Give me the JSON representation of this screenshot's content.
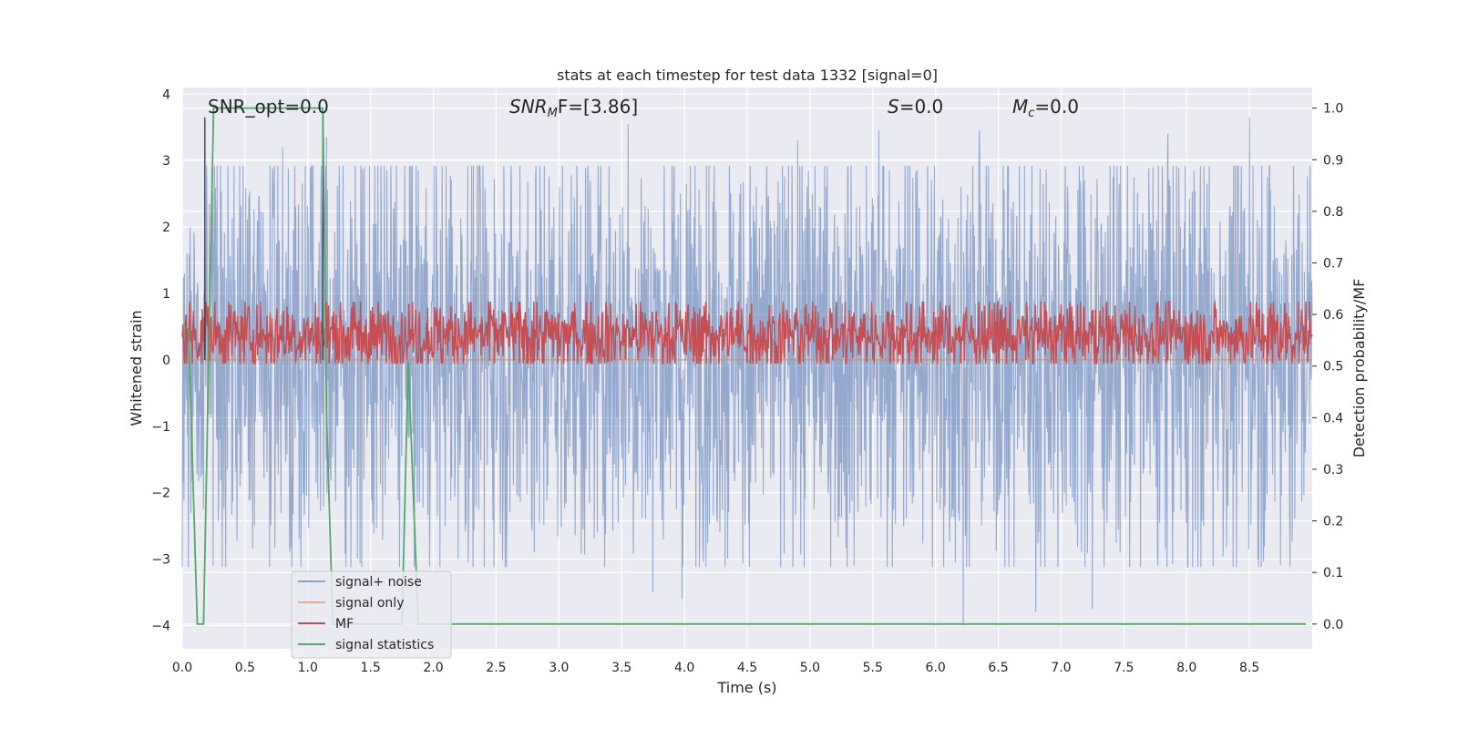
{
  "chart_data": {
    "type": "line",
    "title": "stats at each timestep for test data 1332 [signal=0]",
    "xlabel": "Time (s)",
    "ylabel": "Whitened strain",
    "y2label": "Detection probability/MF",
    "xlim": [
      0.0,
      9.0
    ],
    "ylim": [
      -4.35,
      4.1
    ],
    "y2lim": [
      -0.048,
      1.04
    ],
    "xticks": [
      0.0,
      0.5,
      1.0,
      1.5,
      2.0,
      2.5,
      3.0,
      3.5,
      4.0,
      4.5,
      5.0,
      5.5,
      6.0,
      6.5,
      7.0,
      7.5,
      8.0,
      8.5
    ],
    "xtick_labels": [
      "0.0",
      "0.5",
      "1.0",
      "1.5",
      "2.0",
      "2.5",
      "3.0",
      "3.5",
      "4.0",
      "4.5",
      "5.0",
      "5.5",
      "6.0",
      "6.5",
      "7.0",
      "7.5",
      "8.0",
      "8.5"
    ],
    "yticks": [
      4,
      3,
      2,
      1,
      0,
      -1,
      -2,
      -3,
      -4
    ],
    "ytick_labels": [
      "4",
      "3",
      "2",
      "1",
      "0",
      "−1",
      "−2",
      "−3",
      "−4"
    ],
    "y2ticks": [
      1.0,
      0.9,
      0.8,
      0.7,
      0.6,
      0.5,
      0.4,
      0.3,
      0.2,
      0.1,
      0.0
    ],
    "y2tick_labels": [
      "1.0",
      "0.9",
      "0.8",
      "0.7",
      "0.6",
      "0.5",
      "0.4",
      "0.3",
      "0.2",
      "0.1",
      "0.0"
    ],
    "grid": true,
    "legend_position": "lower-left",
    "annotations": {
      "snr_opt": "SNR_opt=0.0",
      "snr_mf_name": "SNR",
      "snr_mf_sub": "M",
      "snr_mf_rest": "F=[3.86]",
      "s_name": "S",
      "s_rest": "=0.0",
      "mc_name": "M",
      "mc_sub": "c",
      "mc_rest": "=0.0"
    },
    "series": [
      {
        "name": "signal+ noise",
        "color": "#4c72b0",
        "axis": "left",
        "description_range": [
          -4.0,
          3.65
        ],
        "noise_band": [
          -1.7,
          2.1
        ],
        "spike_peaks": [
          [
            0.18,
            3.65
          ],
          [
            0.8,
            3.2
          ],
          [
            1.15,
            3.35
          ],
          [
            3.55,
            3.55
          ],
          [
            4.9,
            3.3
          ],
          [
            5.55,
            3.45
          ],
          [
            6.35,
            3.45
          ],
          [
            7.85,
            3.4
          ],
          [
            8.5,
            3.65
          ],
          [
            3.75,
            -3.5
          ],
          [
            3.98,
            -3.6
          ],
          [
            6.22,
            -4.0
          ],
          [
            6.8,
            -3.8
          ],
          [
            7.25,
            -3.75
          ]
        ]
      },
      {
        "name": "signal only",
        "color": "#dd8452",
        "axis": "left",
        "x": [
          0.0,
          9.0
        ],
        "y": [
          0.0,
          0.0
        ]
      },
      {
        "name": "MF",
        "color": "#c44e52",
        "axis": "right",
        "band": [
          0.52,
          0.6
        ],
        "peaks": [
          0.63,
          0.62,
          0.62
        ]
      },
      {
        "name": "signal statistics",
        "color": "#55a868",
        "axis": "right",
        "x": [
          0.0,
          0.05,
          0.12,
          0.17,
          0.25,
          1.12,
          1.15,
          1.2,
          1.75,
          1.8,
          1.88,
          2.4,
          8.95
        ],
        "y": [
          0.58,
          0.57,
          0.0,
          0.0,
          1.0,
          1.0,
          0.4,
          0.0,
          0.0,
          0.51,
          0.0,
          0.0,
          0.0
        ]
      }
    ]
  }
}
